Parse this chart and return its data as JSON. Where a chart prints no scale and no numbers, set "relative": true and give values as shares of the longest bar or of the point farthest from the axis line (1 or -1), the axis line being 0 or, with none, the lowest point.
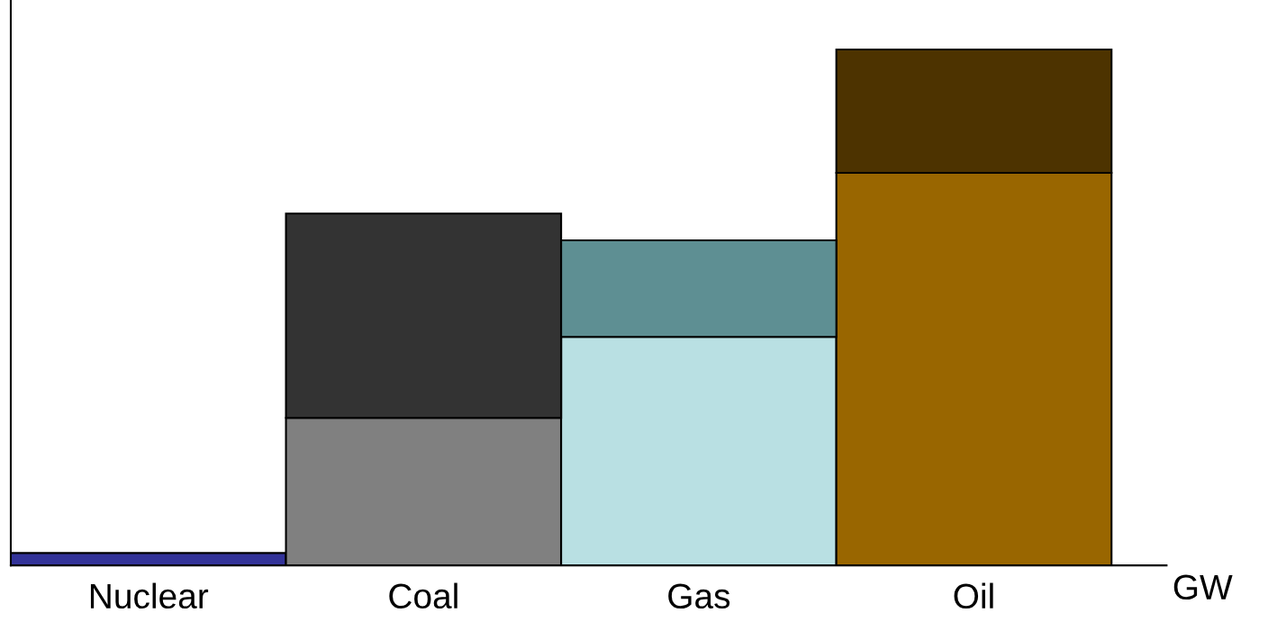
{
  "chart_data": {
    "type": "bar",
    "xlabel": "GW",
    "categories": [
      "Nuclear",
      "Coal",
      "Gas",
      "Oil"
    ],
    "stacked": true,
    "relative": true,
    "grid": false,
    "legend": false,
    "series": [
      {
        "colors": [
          "#333399",
          "#808080",
          "#b9e0e3",
          "#996600"
        ],
        "values": [
          0.024,
          0.286,
          0.443,
          0.761
        ]
      },
      {
        "colors": [
          "#333333",
          "#333333",
          "#5e8f93",
          "#4d3300"
        ],
        "values": [
          null,
          0.396,
          0.187,
          0.239
        ]
      }
    ]
  }
}
